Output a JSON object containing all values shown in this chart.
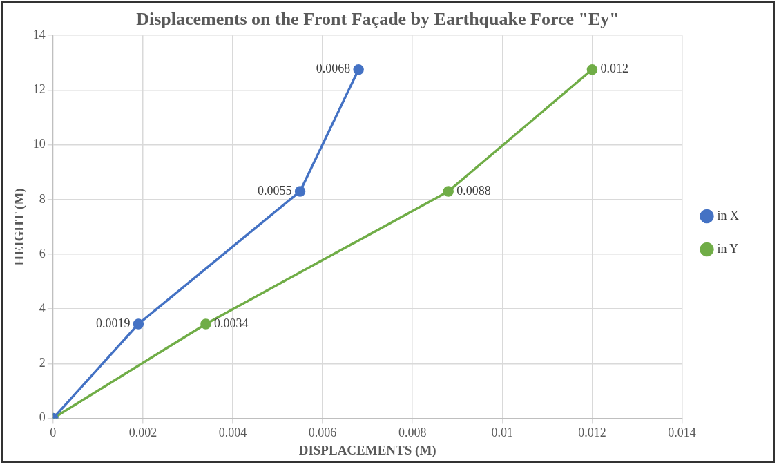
{
  "chart_data": {
    "type": "line",
    "title": "Displacements on the Front Façade by Earthquake Force \"Ey\"",
    "xlabel": "DISPLACEMENTS (M)",
    "ylabel": "HEIGHT (M)",
    "series": [
      {
        "name": "in X",
        "color": "#4472c4",
        "x": [
          0,
          0.0019,
          0.0055,
          0.0068
        ],
        "values": [
          0,
          3.45,
          8.3,
          12.75
        ]
      },
      {
        "name": "in Y",
        "color": "#70ad47",
        "x": [
          0,
          0.0034,
          0.0088,
          0.012
        ],
        "values": [
          0,
          3.45,
          8.3,
          12.75
        ]
      }
    ],
    "annotations": [
      {
        "text": "0.0019",
        "x": 0.0019,
        "y": 3.45
      },
      {
        "text": "0.0055",
        "x": 0.0055,
        "y": 8.3
      },
      {
        "text": "0.0068",
        "x": 0.0068,
        "y": 12.75
      },
      {
        "text": "0.0034",
        "x": 0.0034,
        "y": 3.45
      },
      {
        "text": "0.0088",
        "x": 0.0088,
        "y": 8.3
      },
      {
        "text": "0.012",
        "x": 0.012,
        "y": 12.75
      }
    ],
    "xlim": [
      0,
      0.014
    ],
    "xticks": [
      0,
      0.002,
      0.004,
      0.006,
      0.008,
      0.01,
      0.012,
      0.014
    ],
    "ylim": [
      0,
      14
    ],
    "yticks": [
      0,
      2,
      4,
      6,
      8,
      10,
      12,
      14
    ],
    "grid": true,
    "legend": "right",
    "marker": "circle",
    "line_style": "solid"
  }
}
